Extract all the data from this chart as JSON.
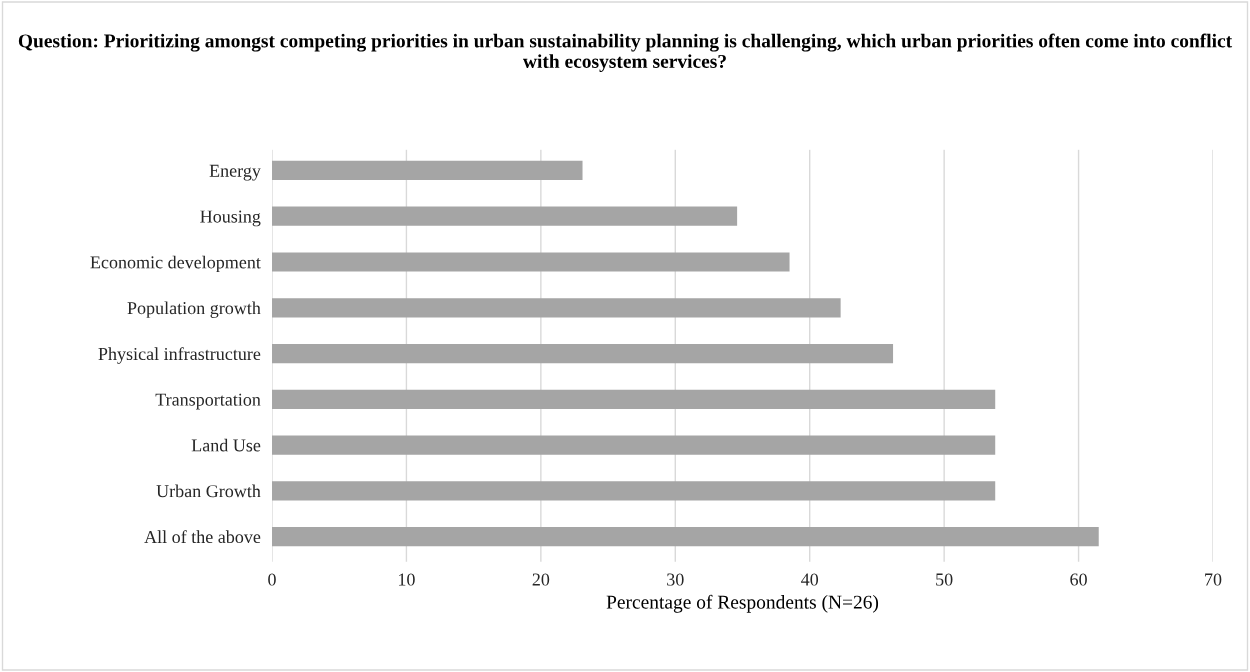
{
  "chart_data": {
    "type": "bar",
    "orientation": "horizontal",
    "title": "Question: Prioritizing amongst competing priorities in urban sustainability planning is challenging, which urban priorities often come into conflict with ecosystem services?",
    "xlabel": "Percentage of Respondents (N=26)",
    "categories": [
      "Energy",
      "Housing",
      "Economic development",
      "Population growth",
      "Physical infrastructure",
      "Transportation",
      "Land Use",
      "Urban Growth",
      "All of the above"
    ],
    "values": [
      23.1,
      34.6,
      38.5,
      42.3,
      46.2,
      53.8,
      53.8,
      53.8,
      61.5
    ],
    "color": "#a5a5a5",
    "xlim": [
      0,
      70
    ],
    "xticks": [
      0,
      10,
      20,
      30,
      40,
      50,
      60,
      70
    ],
    "grid": "x",
    "legend": false
  }
}
